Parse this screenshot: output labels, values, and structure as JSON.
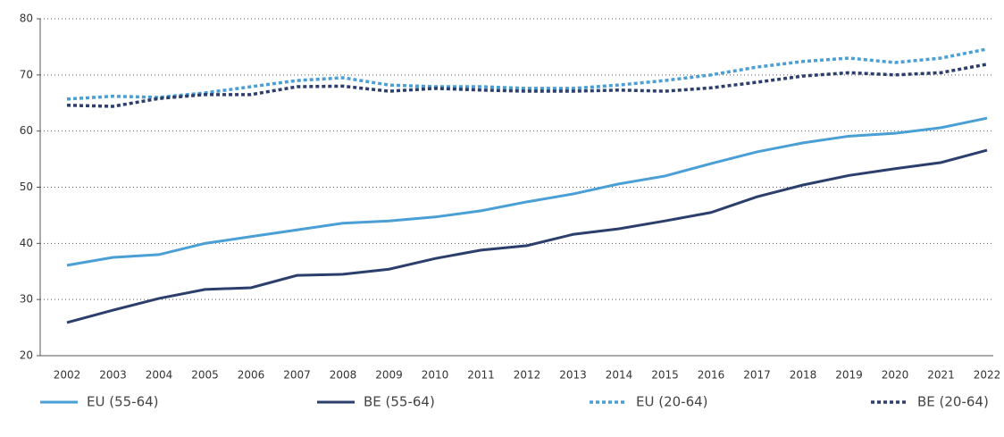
{
  "chart_data": {
    "type": "line",
    "categories": [
      "2002",
      "2003",
      "2004",
      "2005",
      "2006",
      "2007",
      "2008",
      "2009",
      "2010",
      "2011",
      "2012",
      "2013",
      "2014",
      "2015",
      "2016",
      "2017",
      "2018",
      "2019",
      "2020",
      "2021",
      "2022"
    ],
    "series": [
      {
        "name": "EU (55-64)",
        "color": "#4a9fd5",
        "dash": false,
        "values": [
          36.1,
          37.5,
          38.0,
          40.0,
          41.2,
          42.4,
          43.6,
          44.0,
          44.7,
          45.8,
          47.4,
          48.8,
          50.6,
          52.0,
          54.2,
          56.3,
          57.9,
          59.1,
          59.6,
          60.6,
          62.3
        ]
      },
      {
        "name": "BE (55-64)",
        "color": "#2c3e6b",
        "dash": false,
        "values": [
          25.9,
          28.1,
          30.2,
          31.8,
          32.1,
          34.3,
          34.5,
          35.4,
          37.3,
          38.8,
          39.6,
          41.6,
          42.6,
          44.0,
          45.5,
          48.3,
          50.4,
          52.1,
          53.3,
          54.4,
          56.6
        ]
      },
      {
        "name": "EU (20-64)",
        "color": "#4a9fd5",
        "dash": true,
        "values": [
          65.7,
          66.2,
          66.0,
          66.8,
          67.9,
          69.0,
          69.5,
          68.2,
          67.9,
          67.9,
          67.6,
          67.6,
          68.2,
          69.0,
          70.0,
          71.4,
          72.4,
          73.0,
          72.2,
          73.0,
          74.6
        ]
      },
      {
        "name": "BE (20-64)",
        "color": "#2c3e6b",
        "dash": true,
        "values": [
          64.6,
          64.4,
          65.8,
          66.5,
          66.5,
          67.9,
          68.0,
          67.1,
          67.6,
          67.3,
          67.1,
          67.1,
          67.3,
          67.1,
          67.7,
          68.7,
          69.8,
          70.4,
          70.0,
          70.4,
          71.9
        ]
      }
    ],
    "ylim": [
      20,
      80
    ],
    "yticks": [
      20,
      30,
      40,
      50,
      60,
      70,
      80
    ],
    "grid": true
  }
}
